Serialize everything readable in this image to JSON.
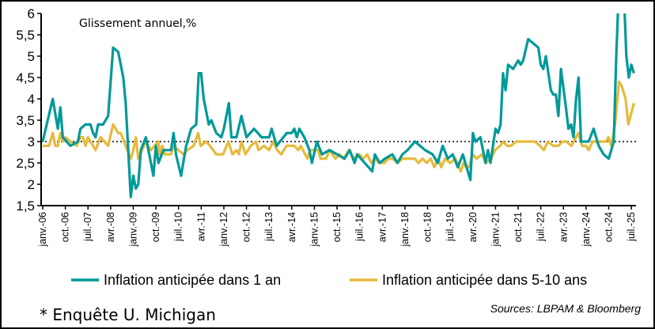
{
  "chart_data": {
    "type": "line",
    "subtitle": "Glissement annuel,%",
    "x_unit": "months since janv.-06",
    "xlim": [
      0,
      235
    ],
    "ylim": [
      1.5,
      6
    ],
    "yticks": [
      "1,5",
      "2",
      "2,5",
      "3",
      "3,5",
      "4",
      "4,5",
      "5",
      "5,5",
      "6"
    ],
    "ytick_values": [
      1.5,
      2,
      2.5,
      3,
      3.5,
      4,
      4.5,
      5,
      5.5,
      6
    ],
    "xticks": [
      "janv.-06",
      "oct.-06",
      "juil.-07",
      "avr.-08",
      "janv.-09",
      "oct.-09",
      "juil.-10",
      "avr.-11",
      "janv.-12",
      "oct.-12",
      "juil.-13",
      "avr.-14",
      "janv.-15",
      "oct.-15",
      "juil.-16",
      "avr.-17",
      "janv.-18",
      "oct.-18",
      "juil.-19",
      "avr.-20",
      "janv.-21",
      "oct.-21",
      "juil.-22",
      "avr.-23",
      "janv.-24",
      "oct.-24",
      "juil.-25"
    ],
    "xtick_step_months": 9,
    "reference_line": {
      "y": 3,
      "style": "dotted"
    },
    "grid": false,
    "legend_position": "bottom",
    "series": [
      {
        "name": "Inflation anticipée dans 1 an",
        "color": "#009999",
        "points": [
          [
            0,
            3.0
          ],
          [
            4,
            4.0
          ],
          [
            6,
            3.3
          ],
          [
            7,
            3.8
          ],
          [
            8,
            3.1
          ],
          [
            11,
            2.9
          ],
          [
            14,
            3.0
          ],
          [
            15,
            3.3
          ],
          [
            17,
            3.4
          ],
          [
            19,
            3.4
          ],
          [
            20,
            3.2
          ],
          [
            21,
            3.1
          ],
          [
            22,
            3.4
          ],
          [
            24,
            3.4
          ],
          [
            26,
            3.6
          ],
          [
            28,
            5.2
          ],
          [
            30,
            5.1
          ],
          [
            32,
            4.5
          ],
          [
            33,
            3.9
          ],
          [
            35,
            1.7
          ],
          [
            36,
            2.2
          ],
          [
            37,
            1.9
          ],
          [
            38,
            2.0
          ],
          [
            39,
            2.8
          ],
          [
            41,
            3.1
          ],
          [
            42,
            2.8
          ],
          [
            44,
            2.2
          ],
          [
            45,
            2.9
          ],
          [
            46,
            2.5
          ],
          [
            48,
            2.8
          ],
          [
            51,
            2.8
          ],
          [
            52,
            3.2
          ],
          [
            53,
            2.7
          ],
          [
            55,
            2.2
          ],
          [
            57,
            2.9
          ],
          [
            59,
            3.3
          ],
          [
            61,
            3.4
          ],
          [
            62,
            4.6
          ],
          [
            63,
            4.6
          ],
          [
            64,
            4.0
          ],
          [
            66,
            3.4
          ],
          [
            67,
            3.5
          ],
          [
            69,
            3.2
          ],
          [
            71,
            3.1
          ],
          [
            72,
            3.3
          ],
          [
            74,
            3.9
          ],
          [
            75,
            3.1
          ],
          [
            77,
            3.1
          ],
          [
            79,
            3.6
          ],
          [
            81,
            3.1
          ],
          [
            84,
            3.3
          ],
          [
            87,
            3.1
          ],
          [
            90,
            3.1
          ],
          [
            91,
            3.3
          ],
          [
            93,
            2.9
          ],
          [
            97,
            3.2
          ],
          [
            99,
            3.2
          ],
          [
            100,
            3.3
          ],
          [
            101,
            3.1
          ],
          [
            102,
            3.3
          ],
          [
            104,
            3.1
          ],
          [
            106,
            2.8
          ],
          [
            107,
            2.5
          ],
          [
            109,
            3.0
          ],
          [
            111,
            2.7
          ],
          [
            114,
            2.8
          ],
          [
            117,
            2.7
          ],
          [
            120,
            2.6
          ],
          [
            122,
            2.8
          ],
          [
            124,
            2.5
          ],
          [
            125,
            2.7
          ],
          [
            128,
            2.5
          ],
          [
            131,
            2.3
          ],
          [
            132,
            2.7
          ],
          [
            134,
            2.5
          ],
          [
            136,
            2.6
          ],
          [
            139,
            2.7
          ],
          [
            141,
            2.5
          ],
          [
            143,
            2.7
          ],
          [
            145,
            2.8
          ],
          [
            148,
            3.0
          ],
          [
            150,
            2.9
          ],
          [
            152,
            2.8
          ],
          [
            155,
            2.7
          ],
          [
            157,
            2.5
          ],
          [
            159,
            2.9
          ],
          [
            161,
            2.6
          ],
          [
            163,
            2.7
          ],
          [
            165,
            2.4
          ],
          [
            167,
            2.7
          ],
          [
            169,
            2.3
          ],
          [
            170,
            2.1
          ],
          [
            171,
            3.2
          ],
          [
            172,
            3.0
          ],
          [
            174,
            3.1
          ],
          [
            176,
            2.5
          ],
          [
            177,
            2.8
          ],
          [
            178,
            2.5
          ],
          [
            180,
            3.3
          ],
          [
            181,
            3.2
          ],
          [
            182,
            3.4
          ],
          [
            183,
            4.6
          ],
          [
            184,
            4.2
          ],
          [
            185,
            4.8
          ],
          [
            187,
            4.7
          ],
          [
            189,
            4.9
          ],
          [
            190,
            4.8
          ],
          [
            191,
            4.9
          ],
          [
            193,
            5.4
          ],
          [
            195,
            5.3
          ],
          [
            197,
            5.2
          ],
          [
            198,
            4.8
          ],
          [
            199,
            4.7
          ],
          [
            200,
            5.0
          ],
          [
            202,
            4.2
          ],
          [
            203,
            4.1
          ],
          [
            204,
            4.1
          ],
          [
            205,
            3.6
          ],
          [
            206,
            4.7
          ],
          [
            208,
            3.8
          ],
          [
            209,
            3.3
          ],
          [
            210,
            3.4
          ],
          [
            211,
            3.1
          ],
          [
            212,
            4.0
          ],
          [
            213,
            4.5
          ],
          [
            214,
            3.0
          ],
          [
            217,
            3.0
          ],
          [
            219,
            3.3
          ],
          [
            221,
            2.9
          ],
          [
            223,
            2.7
          ],
          [
            225,
            2.6
          ],
          [
            227,
            3.0
          ],
          [
            228,
            5.0
          ],
          [
            229,
            6.5
          ],
          [
            231,
            6.5
          ],
          [
            232,
            5.0
          ],
          [
            233,
            4.5
          ],
          [
            234,
            4.8
          ],
          [
            235,
            4.6
          ]
        ]
      },
      {
        "name": "Inflation anticipée dans 5-10 ans",
        "color": "#E6BA3C",
        "points": [
          [
            0,
            2.9
          ],
          [
            2.5,
            2.9
          ],
          [
            4,
            3.2
          ],
          [
            5,
            2.9
          ],
          [
            6,
            2.9
          ],
          [
            7,
            3.2
          ],
          [
            8,
            3.0
          ],
          [
            9,
            3.1
          ],
          [
            11,
            3.0
          ],
          [
            13.5,
            2.9
          ],
          [
            15,
            3.1
          ],
          [
            16,
            3.1
          ],
          [
            17,
            2.9
          ],
          [
            18,
            3.1
          ],
          [
            20,
            2.9
          ],
          [
            21,
            2.8
          ],
          [
            23,
            3.1
          ],
          [
            24.5,
            3.0
          ],
          [
            26,
            2.9
          ],
          [
            28,
            3.4
          ],
          [
            30,
            3.2
          ],
          [
            31,
            3.2
          ],
          [
            33,
            2.9
          ],
          [
            35,
            2.6
          ],
          [
            36,
            2.8
          ],
          [
            37,
            3.1
          ],
          [
            38,
            2.6
          ],
          [
            41,
            3.0
          ],
          [
            43,
            2.8
          ],
          [
            46,
            3.0
          ],
          [
            46.5,
            2.7
          ],
          [
            47.5,
            2.9
          ],
          [
            48.6,
            2.7
          ],
          [
            51,
            2.7
          ],
          [
            52,
            2.9
          ],
          [
            54,
            2.8
          ],
          [
            56,
            2.7
          ],
          [
            57.5,
            2.8
          ],
          [
            60,
            2.9
          ],
          [
            61.8,
            3.2
          ],
          [
            62.8,
            2.9
          ],
          [
            65,
            3.0
          ],
          [
            66.5,
            2.9
          ],
          [
            69,
            2.7
          ],
          [
            71.7,
            2.7
          ],
          [
            73.8,
            3.0
          ],
          [
            75.4,
            2.7
          ],
          [
            77,
            2.8
          ],
          [
            78,
            2.7
          ],
          [
            79,
            3.0
          ],
          [
            80.6,
            2.7
          ],
          [
            82.7,
            2.9
          ],
          [
            84.8,
            3.0
          ],
          [
            85.8,
            2.8
          ],
          [
            88,
            2.9
          ],
          [
            90,
            2.8
          ],
          [
            91.6,
            3.0
          ],
          [
            93.2,
            2.8
          ],
          [
            94.8,
            2.7
          ],
          [
            96.9,
            2.9
          ],
          [
            100,
            2.9
          ],
          [
            101.6,
            2.8
          ],
          [
            102.6,
            2.9
          ],
          [
            105.2,
            2.6
          ],
          [
            106.3,
            2.8
          ],
          [
            109.4,
            2.8
          ],
          [
            110.5,
            2.6
          ],
          [
            112.6,
            2.6
          ],
          [
            114,
            2.8
          ],
          [
            116.4,
            2.6
          ],
          [
            118,
            2.7
          ],
          [
            119.6,
            2.6
          ],
          [
            121.7,
            2.8
          ],
          [
            123.8,
            2.6
          ],
          [
            125.9,
            2.7
          ],
          [
            127.4,
            2.6
          ],
          [
            129,
            2.7
          ],
          [
            130.6,
            2.5
          ],
          [
            132.1,
            2.6
          ],
          [
            133.7,
            2.5
          ],
          [
            135.8,
            2.5
          ],
          [
            137.4,
            2.6
          ],
          [
            139,
            2.6
          ],
          [
            141,
            2.5
          ],
          [
            143,
            2.6
          ],
          [
            146.3,
            2.6
          ],
          [
            147.9,
            2.6
          ],
          [
            149.4,
            2.5
          ],
          [
            151,
            2.6
          ],
          [
            152.6,
            2.5
          ],
          [
            154.2,
            2.6
          ],
          [
            155.7,
            2.4
          ],
          [
            157.3,
            2.6
          ],
          [
            158.4,
            2.4
          ],
          [
            159.9,
            2.6
          ],
          [
            162,
            2.5
          ],
          [
            164.1,
            2.6
          ],
          [
            166.2,
            2.3
          ],
          [
            167.3,
            2.5
          ],
          [
            168.3,
            2.4
          ],
          [
            169.4,
            2.4
          ],
          [
            170.9,
            2.7
          ],
          [
            172.5,
            2.6
          ],
          [
            174.6,
            2.7
          ],
          [
            176.2,
            2.5
          ],
          [
            178.3,
            2.6
          ],
          [
            179.8,
            2.8
          ],
          [
            181.9,
            2.9
          ],
          [
            183,
            3.0
          ],
          [
            184.6,
            2.9
          ],
          [
            186.1,
            2.9
          ],
          [
            188.2,
            3.0
          ],
          [
            190.3,
            3.0
          ],
          [
            191.4,
            3.0
          ],
          [
            195.6,
            3.0
          ],
          [
            197.7,
            2.9
          ],
          [
            199.2,
            2.8
          ],
          [
            200.8,
            3.0
          ],
          [
            202.9,
            2.9
          ],
          [
            205,
            2.9
          ],
          [
            206.6,
            3.0
          ],
          [
            208.1,
            3.0
          ],
          [
            210.2,
            2.9
          ],
          [
            212.9,
            3.2
          ],
          [
            214.4,
            2.9
          ],
          [
            216,
            2.9
          ],
          [
            217,
            2.8
          ],
          [
            218.6,
            3.0
          ],
          [
            221.8,
            3.0
          ],
          [
            223.9,
            3.0
          ],
          [
            224.9,
            3.1
          ],
          [
            226,
            2.9
          ],
          [
            227.5,
            3.4
          ],
          [
            229.1,
            4.4
          ],
          [
            230.2,
            4.3
          ],
          [
            231.7,
            4.0
          ],
          [
            232.8,
            3.4
          ],
          [
            235,
            3.9
          ]
        ]
      }
    ]
  },
  "footnote": "* Enquête U. Michigan",
  "sources": "Sources: LBPAM & Bloomberg"
}
